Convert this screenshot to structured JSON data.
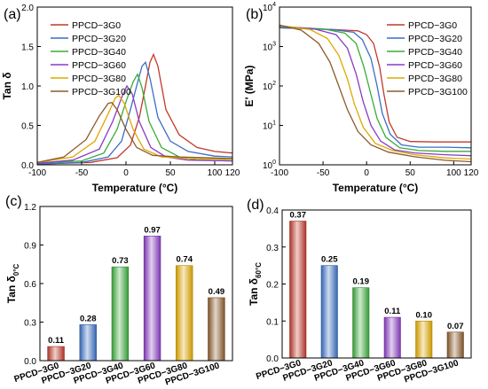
{
  "colors": [
    "#c0392b",
    "#3a6fc4",
    "#3aaa3a",
    "#8a3cc4",
    "#e0a800",
    "#8b5a2b"
  ],
  "chart_data": [
    {
      "panel": "(a)",
      "type": "line",
      "xlabel": "Temperature (°C)",
      "ylabel": "Tan δ",
      "xlim": [
        -100,
        120
      ],
      "ylim": [
        0,
        2.0
      ],
      "xticks": [
        -100,
        -50,
        0,
        50,
        100,
        120
      ],
      "yticks": [
        0.0,
        0.5,
        1.0,
        1.5,
        2.0
      ],
      "legend_position": "top-left",
      "series": [
        {
          "name": "PPCD−3G0",
          "points": [
            [
              -100,
              0.01
            ],
            [
              -40,
              0.03
            ],
            [
              -10,
              0.09
            ],
            [
              5,
              0.25
            ],
            [
              15,
              0.6
            ],
            [
              22,
              1.0
            ],
            [
              27,
              1.3
            ],
            [
              31,
              1.4
            ],
            [
              36,
              1.25
            ],
            [
              45,
              0.7
            ],
            [
              60,
              0.38
            ],
            [
              80,
              0.22
            ],
            [
              100,
              0.17
            ],
            [
              120,
              0.15
            ]
          ]
        },
        {
          "name": "PPCD−3G20",
          "points": [
            [
              -100,
              0.01
            ],
            [
              -50,
              0.03
            ],
            [
              -20,
              0.1
            ],
            [
              -5,
              0.3
            ],
            [
              5,
              0.7
            ],
            [
              12,
              1.0
            ],
            [
              18,
              1.25
            ],
            [
              22,
              1.3
            ],
            [
              27,
              1.1
            ],
            [
              36,
              0.6
            ],
            [
              50,
              0.3
            ],
            [
              70,
              0.17
            ],
            [
              100,
              0.11
            ],
            [
              120,
              0.1
            ]
          ]
        },
        {
          "name": "PPCD−3G40",
          "points": [
            [
              -100,
              0.02
            ],
            [
              -50,
              0.05
            ],
            [
              -25,
              0.15
            ],
            [
              -10,
              0.45
            ],
            [
              0,
              0.8
            ],
            [
              8,
              1.05
            ],
            [
              13,
              1.15
            ],
            [
              18,
              0.98
            ],
            [
              26,
              0.55
            ],
            [
              40,
              0.22
            ],
            [
              60,
              0.1
            ],
            [
              80,
              0.06
            ],
            [
              120,
              0.05
            ]
          ]
        },
        {
          "name": "PPCD−3G60",
          "points": [
            [
              -100,
              0.02
            ],
            [
              -60,
              0.06
            ],
            [
              -30,
              0.2
            ],
            [
              -15,
              0.55
            ],
            [
              -5,
              0.85
            ],
            [
              1,
              1.0
            ],
            [
              7,
              0.9
            ],
            [
              15,
              0.55
            ],
            [
              28,
              0.22
            ],
            [
              45,
              0.1
            ],
            [
              70,
              0.06
            ],
            [
              120,
              0.05
            ]
          ]
        },
        {
          "name": "PPCD−3G80",
          "points": [
            [
              -100,
              0.03
            ],
            [
              -60,
              0.1
            ],
            [
              -35,
              0.3
            ],
            [
              -20,
              0.65
            ],
            [
              -12,
              0.85
            ],
            [
              -8,
              0.88
            ],
            [
              -2,
              0.78
            ],
            [
              8,
              0.45
            ],
            [
              20,
              0.2
            ],
            [
              40,
              0.1
            ],
            [
              70,
              0.08
            ],
            [
              120,
              0.07
            ]
          ]
        },
        {
          "name": "PPCD−3G100",
          "points": [
            [
              -100,
              0.03
            ],
            [
              -70,
              0.1
            ],
            [
              -45,
              0.32
            ],
            [
              -30,
              0.62
            ],
            [
              -20,
              0.78
            ],
            [
              -16,
              0.79
            ],
            [
              -10,
              0.7
            ],
            [
              0,
              0.45
            ],
            [
              12,
              0.22
            ],
            [
              30,
              0.12
            ],
            [
              60,
              0.1
            ],
            [
              120,
              0.08
            ]
          ]
        }
      ]
    },
    {
      "panel": "(b)",
      "type": "line",
      "xlabel": "Temperature (°C)",
      "ylabel": "E' (MPa)",
      "yscale": "log",
      "xlim": [
        -100,
        120
      ],
      "ylim": [
        1,
        10000
      ],
      "xticks": [
        -100,
        -50,
        0,
        50,
        100,
        120
      ],
      "ytick_labels": [
        "10^0",
        "10^1",
        "10^2",
        "10^3",
        "10^4"
      ],
      "legend_position": "top-right",
      "series": [
        {
          "name": "PPCD−3G0",
          "points": [
            [
              -100,
              3000
            ],
            [
              -40,
              2700
            ],
            [
              -10,
              2500
            ],
            [
              0,
              2000
            ],
            [
              8,
              1200
            ],
            [
              15,
              300
            ],
            [
              20,
              60
            ],
            [
              26,
              12
            ],
            [
              35,
              5
            ],
            [
              50,
              3.9
            ],
            [
              80,
              3.8
            ],
            [
              120,
              3.8
            ]
          ]
        },
        {
          "name": "PPCD−3G20",
          "points": [
            [
              -100,
              3000
            ],
            [
              -40,
              2700
            ],
            [
              -15,
              2300
            ],
            [
              -5,
              1500
            ],
            [
              5,
              500
            ],
            [
              12,
              100
            ],
            [
              18,
              20
            ],
            [
              27,
              6
            ],
            [
              40,
              3.2
            ],
            [
              60,
              2.8
            ],
            [
              90,
              2.8
            ],
            [
              120,
              2.7
            ]
          ]
        },
        {
          "name": "PPCD−3G40",
          "points": [
            [
              -100,
              3200
            ],
            [
              -50,
              2800
            ],
            [
              -25,
              2200
            ],
            [
              -12,
              1200
            ],
            [
              -3,
              300
            ],
            [
              5,
              60
            ],
            [
              12,
              15
            ],
            [
              22,
              5
            ],
            [
              38,
              2.7
            ],
            [
              60,
              2.3
            ],
            [
              90,
              2.2
            ],
            [
              120,
              2.2
            ]
          ]
        },
        {
          "name": "PPCD−3G60",
          "points": [
            [
              -100,
              3300
            ],
            [
              -60,
              2800
            ],
            [
              -35,
              2000
            ],
            [
              -22,
              900
            ],
            [
              -12,
              200
            ],
            [
              -4,
              40
            ],
            [
              5,
              10
            ],
            [
              16,
              4
            ],
            [
              32,
              2.4
            ],
            [
              55,
              2.0
            ],
            [
              90,
              1.8
            ],
            [
              120,
              1.7
            ]
          ]
        },
        {
          "name": "PPCD−3G80",
          "points": [
            [
              -100,
              3400
            ],
            [
              -65,
              2700
            ],
            [
              -45,
              1600
            ],
            [
              -32,
              600
            ],
            [
              -22,
              150
            ],
            [
              -14,
              35
            ],
            [
              -4,
              9
            ],
            [
              10,
              3.5
            ],
            [
              30,
              2.3
            ],
            [
              55,
              1.8
            ],
            [
              90,
              1.5
            ],
            [
              120,
              1.4
            ]
          ]
        },
        {
          "name": "PPCD−3G100",
          "points": [
            [
              -100,
              3500
            ],
            [
              -75,
              2600
            ],
            [
              -55,
              1200
            ],
            [
              -42,
              400
            ],
            [
              -32,
              100
            ],
            [
              -22,
              25
            ],
            [
              -10,
              7
            ],
            [
              5,
              3.2
            ],
            [
              25,
              2.1
            ],
            [
              55,
              1.6
            ],
            [
              90,
              1.3
            ],
            [
              120,
              1.2
            ]
          ]
        }
      ]
    },
    {
      "panel": "(c)",
      "type": "bar",
      "ylabel_main": "Tan δ",
      "ylabel_sub": "0°C",
      "ylim": [
        0,
        1.2
      ],
      "yticks": [
        0.0,
        0.3,
        0.6,
        0.9,
        1.2
      ],
      "categories": [
        "PPCD−3G0",
        "PPCD−3G20",
        "PPCD−3G40",
        "PPCD−3G60",
        "PPCD−3G80",
        "PPCD−3G100"
      ],
      "values": [
        0.11,
        0.28,
        0.73,
        0.97,
        0.74,
        0.49
      ],
      "value_labels": [
        "0.11",
        "0.28",
        "0.73",
        "0.97",
        "0.74",
        "0.49"
      ]
    },
    {
      "panel": "(d)",
      "type": "bar",
      "ylabel_main": "Tan δ",
      "ylabel_sub": "60°C",
      "ylim": [
        0,
        0.4
      ],
      "yticks": [
        0.0,
        0.1,
        0.2,
        0.3,
        0.4
      ],
      "categories": [
        "PPCD−3G0",
        "PPCD−3G20",
        "PPCD−3G40",
        "PPCD−3G60",
        "PPCD−3G80",
        "PPCD−3G100"
      ],
      "values": [
        0.37,
        0.25,
        0.19,
        0.11,
        0.1,
        0.07
      ],
      "value_labels": [
        "0.37",
        "0.25",
        "0.19",
        "0.11",
        "0.10",
        "0.07"
      ]
    }
  ]
}
